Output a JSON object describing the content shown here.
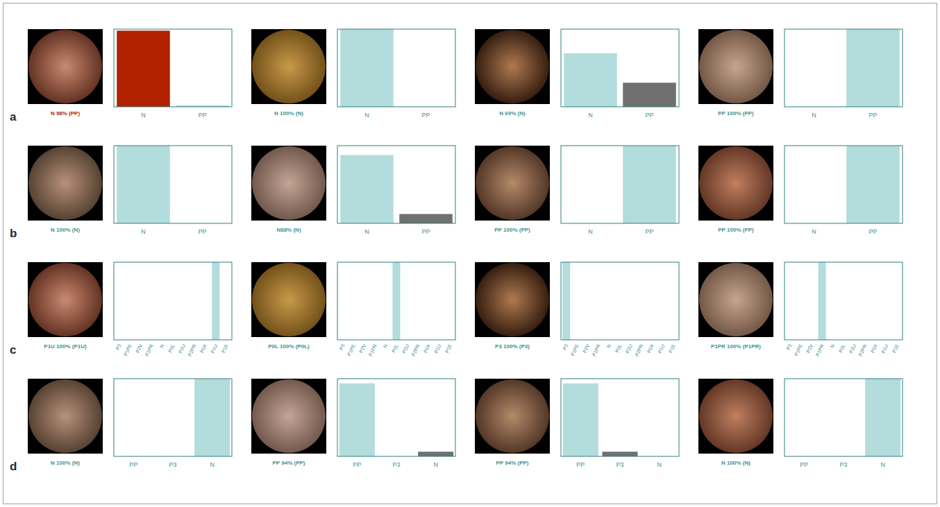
{
  "row_labels": [
    "a",
    "b",
    "c",
    "d"
  ],
  "chart_data": [
    {
      "type": "bar",
      "title": "N 98% (PP)",
      "categories": [
        "N",
        "PP"
      ],
      "values": [
        98,
        2
      ],
      "colors": [
        "#b22200",
        "#b3dcdc"
      ],
      "ylim": [
        0,
        100
      ],
      "tick_labels": "x"
    },
    {
      "type": "bar",
      "title": "N 100% (N)",
      "categories": [
        "N",
        "PP"
      ],
      "values": [
        100,
        0
      ],
      "colors": [
        "#b3dcdc",
        "#b3dcdc"
      ],
      "ylim": [
        0,
        100
      ],
      "tick_labels": "x"
    },
    {
      "type": "bar",
      "title": "N 69% (N)",
      "categories": [
        "N",
        "PP"
      ],
      "values": [
        69,
        31
      ],
      "colors": [
        "#b3dcdc",
        "#707070"
      ],
      "ylim": [
        0,
        100
      ],
      "tick_labels": "x"
    },
    {
      "type": "bar",
      "title": "PP 100% (PP)",
      "categories": [
        "N",
        "PP"
      ],
      "values": [
        0,
        100
      ],
      "colors": [
        "#b3dcdc",
        "#b3dcdc"
      ],
      "ylim": [
        0,
        100
      ],
      "tick_labels": "x"
    },
    {
      "type": "bar",
      "title": "N 100% (N)",
      "categories": [
        "N",
        "PP"
      ],
      "values": [
        100,
        0
      ],
      "colors": [
        "#b3dcdc",
        "#b3dcdc"
      ],
      "ylim": [
        0,
        100
      ],
      "tick_labels": "x"
    },
    {
      "type": "bar",
      "title": "N88% (N)",
      "categories": [
        "N",
        "PP"
      ],
      "values": [
        88,
        12
      ],
      "colors": [
        "#b3dcdc",
        "#707070"
      ],
      "ylim": [
        0,
        100
      ],
      "tick_labels": "x"
    },
    {
      "type": "bar",
      "title": "PP 100% (PP)",
      "categories": [
        "N",
        "PP"
      ],
      "values": [
        0,
        100
      ],
      "colors": [
        "#b3dcdc",
        "#b3dcdc"
      ],
      "ylim": [
        0,
        100
      ],
      "tick_labels": "x"
    },
    {
      "type": "bar",
      "title": "PP 100% (PP)",
      "categories": [
        "N",
        "PP"
      ],
      "values": [
        0,
        100
      ],
      "colors": [
        "#b3dcdc",
        "#b3dcdc"
      ],
      "ylim": [
        0,
        100
      ],
      "tick_labels": "x"
    },
    {
      "type": "bar",
      "title": "P1U 100% (P1U)",
      "categories": [
        "P3",
        "P1PE",
        "P2V",
        "P1PR",
        "N",
        "P0L",
        "P2U",
        "P2PR",
        "P0X",
        "P1U",
        "P1E"
      ],
      "values": [
        0,
        0,
        0,
        0,
        0,
        0,
        0,
        0,
        0,
        100,
        0
      ],
      "colors": [
        "#b3dcdc",
        "#b3dcdc",
        "#b3dcdc",
        "#b3dcdc",
        "#b3dcdc",
        "#b3dcdc",
        "#b3dcdc",
        "#b3dcdc",
        "#b3dcdc",
        "#b3dcdc",
        "#b3dcdc"
      ],
      "ylim": [
        0,
        100
      ],
      "tick_labels": "x"
    },
    {
      "type": "bar",
      "title": "P0L 100% (P0L)",
      "categories": [
        "P3",
        "P1PE",
        "P2V",
        "P1PR",
        "N",
        "P0L",
        "P2U",
        "P2PR",
        "P0X",
        "P1U",
        "P1E"
      ],
      "values": [
        0,
        0,
        0,
        0,
        0,
        100,
        0,
        0,
        0,
        0,
        0
      ],
      "colors": [
        "#b3dcdc",
        "#b3dcdc",
        "#b3dcdc",
        "#b3dcdc",
        "#b3dcdc",
        "#b3dcdc",
        "#b3dcdc",
        "#b3dcdc",
        "#b3dcdc",
        "#b3dcdc",
        "#b3dcdc"
      ],
      "ylim": [
        0,
        100
      ],
      "tick_labels": "x"
    },
    {
      "type": "bar",
      "title": "P3 100% (P3)",
      "categories": [
        "P3",
        "P1PE",
        "P2V",
        "P1PR",
        "N",
        "P0L",
        "P2U",
        "P2PR",
        "P0X",
        "P1U",
        "P1E"
      ],
      "values": [
        100,
        0,
        0,
        0,
        0,
        0,
        0,
        0,
        0,
        0,
        0
      ],
      "colors": [
        "#b3dcdc",
        "#b3dcdc",
        "#b3dcdc",
        "#b3dcdc",
        "#b3dcdc",
        "#b3dcdc",
        "#b3dcdc",
        "#b3dcdc",
        "#b3dcdc",
        "#b3dcdc",
        "#b3dcdc"
      ],
      "ylim": [
        0,
        100
      ],
      "tick_labels": "x"
    },
    {
      "type": "bar",
      "title": "P1PR 100% (P1PR)",
      "categories": [
        "P3",
        "P1PE",
        "P2V",
        "P1PR",
        "N",
        "P0L",
        "P2U",
        "P2PR",
        "P0X",
        "P1U",
        "P1E"
      ],
      "values": [
        0,
        0,
        0,
        100,
        0,
        0,
        0,
        0,
        0,
        0,
        0
      ],
      "colors": [
        "#b3dcdc",
        "#b3dcdc",
        "#b3dcdc",
        "#b3dcdc",
        "#b3dcdc",
        "#b3dcdc",
        "#b3dcdc",
        "#b3dcdc",
        "#b3dcdc",
        "#b3dcdc",
        "#b3dcdc"
      ],
      "ylim": [
        0,
        100
      ],
      "tick_labels": "x"
    },
    {
      "type": "bar",
      "title": "N 100% (N)",
      "categories": [
        "PP",
        "P3",
        "N"
      ],
      "values": [
        0,
        0,
        100
      ],
      "colors": [
        "#b3dcdc",
        "#b3dcdc",
        "#b3dcdc"
      ],
      "ylim": [
        0,
        100
      ],
      "tick_labels": "x"
    },
    {
      "type": "bar",
      "title": "PP 94% (PP)",
      "categories": [
        "PP",
        "P3",
        "N"
      ],
      "values": [
        94,
        0,
        6
      ],
      "colors": [
        "#b3dcdc",
        "#b3dcdc",
        "#707070"
      ],
      "ylim": [
        0,
        100
      ],
      "tick_labels": "x"
    },
    {
      "type": "bar",
      "title": "PP 94% (PP)",
      "categories": [
        "PP",
        "P3",
        "N"
      ],
      "values": [
        94,
        6,
        0
      ],
      "colors": [
        "#b3dcdc",
        "#707070",
        "#b3dcdc"
      ],
      "ylim": [
        0,
        100
      ],
      "tick_labels": "x"
    },
    {
      "type": "bar",
      "title": "N 100% (N)",
      "categories": [
        "PP",
        "P3",
        "N"
      ],
      "values": [
        0,
        0,
        100
      ],
      "colors": [
        "#b3dcdc",
        "#b3dcdc",
        "#b3dcdc"
      ],
      "ylim": [
        0,
        100
      ],
      "tick_labels": "x"
    }
  ]
}
